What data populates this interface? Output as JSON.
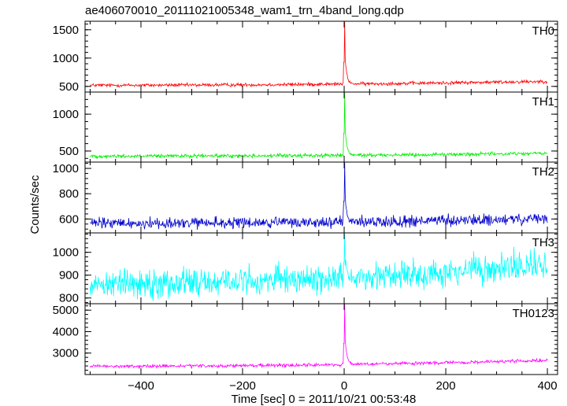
{
  "chart_data": {
    "type": "line",
    "title": "ae406070010_20111021005348_wam1_trn_4band_long.qdp",
    "xlabel": "Time [sec] 0 = 2011/10/21 00:53:48",
    "ylabel": "Counts/sec",
    "xlim": [
      -510,
      420
    ],
    "x_ticks": [
      -400,
      -200,
      0,
      200,
      400
    ],
    "x_tick_labels": [
      "−400",
      "−200",
      "0",
      "200",
      "400"
    ],
    "grid": false,
    "panels": [
      {
        "name": "TH0",
        "color": "#ff0000",
        "ylim": [
          400,
          1650
        ],
        "y_ticks": [
          500,
          1000,
          1500
        ],
        "y_tick_labels": [
          "500",
          "1000",
          "1500"
        ],
        "baseline_start": 520,
        "baseline_end": 590,
        "noise": 22,
        "peak": 1640,
        "post_burst_level": 700
      },
      {
        "name": "TH1",
        "color": "#00ee00",
        "ylim": [
          350,
          1300
        ],
        "y_ticks": [
          500,
          1000
        ],
        "y_tick_labels": [
          "500",
          "1000"
        ],
        "baseline_start": 430,
        "baseline_end": 470,
        "noise": 18,
        "peak": 1290,
        "post_burst_level": 600
      },
      {
        "name": "TH2",
        "color": "#0000cc",
        "ylim": [
          490,
          1050
        ],
        "y_ticks": [
          600,
          800,
          1000
        ],
        "y_tick_labels": [
          "600",
          "800",
          "1000"
        ],
        "baseline_start": 565,
        "baseline_end": 600,
        "noise": 32,
        "peak": 1045,
        "post_burst_level": 680
      },
      {
        "name": "TH3",
        "color": "#00ffff",
        "ylim": [
          775,
          1085
        ],
        "y_ticks": [
          800,
          900,
          1000
        ],
        "y_tick_labels": [
          "800",
          "900",
          "1000"
        ],
        "baseline_start": 865,
        "baseline_end": 945,
        "noise": 45,
        "peak": 1080,
        "post_burst_level": 950
      },
      {
        "name": "TH0123",
        "color": "#ff00ff",
        "ylim": [
          2000,
          5300
        ],
        "y_ticks": [
          3000,
          4000,
          5000
        ],
        "y_tick_labels": [
          "3000",
          "4000",
          "5000"
        ],
        "baseline_start": 2380,
        "baseline_end": 2660,
        "noise": 55,
        "peak": 5290,
        "post_burst_level": 3000
      }
    ]
  }
}
